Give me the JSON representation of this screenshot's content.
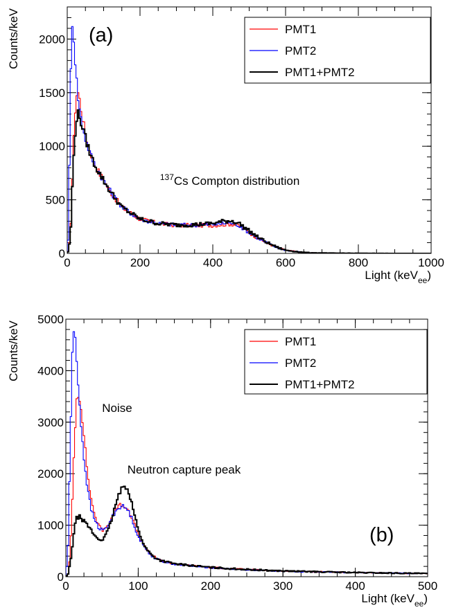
{
  "chart_data": [
    {
      "type": "line",
      "panel_label": "(a)",
      "xlabel": "Light (keV",
      "xlabel_sub": "ee",
      "xlabel_close": ")",
      "ylabel": "Counts/keV",
      "xlim": [
        0,
        1000
      ],
      "ylim": [
        0,
        2300
      ],
      "xticks": [
        "0",
        "200",
        "400",
        "600",
        "800",
        "1000"
      ],
      "xtick_values": [
        0,
        200,
        400,
        600,
        800,
        1000
      ],
      "yticks": [
        "0",
        "500",
        "1000",
        "1500",
        "2000"
      ],
      "ytick_values": [
        0,
        500,
        1000,
        1500,
        2000
      ],
      "annotation": {
        "sup": "137",
        "text": "Cs Compton distribution",
        "x": 255,
        "y": 640
      },
      "legend_position": "top-right",
      "series": [
        {
          "name": "PMT1",
          "color": "#ff0000",
          "x": [
            0,
            5,
            10,
            15,
            20,
            25,
            30,
            35,
            40,
            50,
            60,
            70,
            80,
            100,
            120,
            150,
            200,
            250,
            300,
            350,
            400,
            430,
            450,
            470,
            500,
            520,
            550,
            580,
            600,
            650,
            700,
            800,
            900,
            1000
          ],
          "y": [
            0,
            40,
            300,
            800,
            1250,
            1480,
            1500,
            1420,
            1300,
            1120,
            980,
            880,
            800,
            680,
            570,
            430,
            320,
            280,
            262,
            262,
            262,
            270,
            275,
            262,
            195,
            150,
            95,
            50,
            30,
            8,
            3,
            1,
            0,
            0
          ]
        },
        {
          "name": "PMT2",
          "color": "#0000ff",
          "x": [
            0,
            3,
            6,
            10,
            13,
            16,
            20,
            25,
            30,
            35,
            40,
            50,
            60,
            70,
            80,
            100,
            120,
            150,
            200,
            250,
            300,
            350,
            400,
            430,
            450,
            470,
            500,
            520,
            550,
            580,
            600,
            650,
            700,
            800,
            900,
            1000
          ],
          "y": [
            0,
            200,
            800,
            1700,
            2200,
            2100,
            1900,
            1650,
            1450,
            1320,
            1220,
            1070,
            960,
            870,
            800,
            680,
            570,
            430,
            320,
            280,
            265,
            265,
            270,
            280,
            285,
            265,
            195,
            150,
            95,
            50,
            30,
            8,
            3,
            1,
            0,
            0
          ]
        },
        {
          "name": "PMT1+PMT2",
          "color": "#000000",
          "x": [
            0,
            5,
            10,
            15,
            20,
            25,
            30,
            35,
            40,
            50,
            60,
            70,
            80,
            100,
            120,
            150,
            200,
            250,
            300,
            350,
            400,
            430,
            450,
            470,
            500,
            520,
            550,
            580,
            600,
            650,
            700,
            800,
            900,
            1000
          ],
          "y": [
            0,
            40,
            250,
            700,
            1050,
            1250,
            1300,
            1260,
            1200,
            1080,
            960,
            870,
            800,
            680,
            570,
            430,
            320,
            280,
            265,
            268,
            280,
            300,
            305,
            285,
            210,
            160,
            100,
            52,
            30,
            8,
            3,
            1,
            0,
            0
          ]
        }
      ]
    },
    {
      "type": "line",
      "panel_label": "(b)",
      "xlabel": "Light (keV",
      "xlabel_sub": "ee",
      "xlabel_close": ")",
      "ylabel": "Counts/keV",
      "xlim": [
        0,
        500
      ],
      "ylim": [
        0,
        5000
      ],
      "xticks": [
        "0",
        "100",
        "200",
        "300",
        "400",
        "500"
      ],
      "xtick_values": [
        0,
        100,
        200,
        300,
        400,
        500
      ],
      "yticks": [
        "0",
        "1000",
        "2000",
        "3000",
        "4000",
        "5000"
      ],
      "ytick_values": [
        0,
        1000,
        2000,
        3000,
        4000,
        5000
      ],
      "annotations": [
        {
          "text": "Noise",
          "x": 50,
          "y": 3200
        },
        {
          "text": "Neutron capture peak",
          "x": 85,
          "y": 2000
        }
      ],
      "legend_position": "top-right",
      "series": [
        {
          "name": "PMT1",
          "color": "#ff0000",
          "x": [
            0,
            3,
            6,
            9,
            12,
            15,
            18,
            22,
            26,
            30,
            35,
            40,
            45,
            50,
            55,
            60,
            65,
            70,
            75,
            80,
            85,
            90,
            95,
            100,
            110,
            120,
            130,
            150,
            200,
            250,
            300,
            400,
            500
          ],
          "y": [
            0,
            50,
            400,
            1500,
            2700,
            3450,
            3550,
            3200,
            2600,
            2000,
            1500,
            1200,
            1000,
            900,
            940,
            1050,
            1200,
            1330,
            1390,
            1390,
            1330,
            1200,
            1000,
            800,
            550,
            400,
            320,
            250,
            180,
            140,
            110,
            80,
            60
          ]
        },
        {
          "name": "PMT2",
          "color": "#0000ff",
          "x": [
            0,
            3,
            6,
            9,
            11,
            13,
            16,
            20,
            25,
            30,
            35,
            40,
            45,
            50,
            55,
            60,
            65,
            70,
            75,
            80,
            85,
            90,
            95,
            100,
            110,
            120,
            130,
            150,
            200,
            250,
            300,
            400,
            500
          ],
          "y": [
            0,
            600,
            2500,
            4300,
            4750,
            4650,
            4000,
            3100,
            2300,
            1700,
            1300,
            1100,
            960,
            900,
            930,
            1030,
            1180,
            1300,
            1360,
            1360,
            1300,
            1180,
            980,
            780,
            540,
            390,
            310,
            245,
            175,
            135,
            105,
            80,
            60
          ]
        },
        {
          "name": "PMT1+PMT2",
          "color": "#000000",
          "x": [
            0,
            3,
            6,
            9,
            12,
            15,
            18,
            22,
            26,
            30,
            35,
            40,
            45,
            50,
            55,
            60,
            65,
            70,
            75,
            80,
            83,
            86,
            90,
            95,
            100,
            110,
            120,
            130,
            150,
            200,
            250,
            300,
            400,
            500
          ],
          "y": [
            0,
            50,
            250,
            600,
            950,
            1130,
            1170,
            1130,
            1050,
            1000,
            900,
            800,
            730,
            720,
            800,
            950,
            1200,
            1450,
            1650,
            1750,
            1750,
            1690,
            1500,
            1200,
            900,
            560,
            400,
            320,
            250,
            180,
            140,
            110,
            80,
            60
          ]
        }
      ]
    }
  ]
}
